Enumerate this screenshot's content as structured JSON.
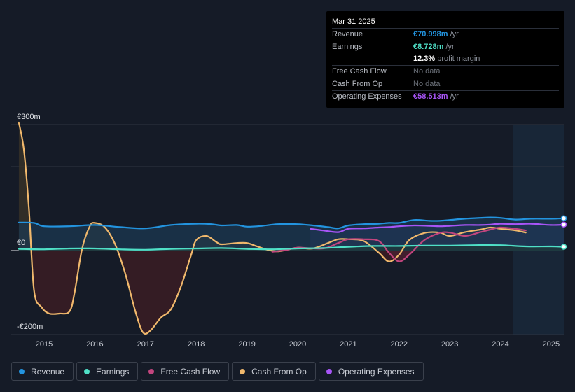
{
  "tooltip": {
    "date": "Mar 31 2025",
    "rows": [
      {
        "label": "Revenue",
        "value": "€70.998m",
        "unit": " /yr",
        "color": "#2394df"
      },
      {
        "label": "Earnings",
        "value": "€8.728m",
        "unit": " /yr",
        "color": "#4fe0c7"
      },
      {
        "label": "",
        "value": "12.3%",
        "unit": " profit margin",
        "color": "#ffffff"
      },
      {
        "label": "Free Cash Flow",
        "value": "No data",
        "unit": "",
        "color": "#6b7079"
      },
      {
        "label": "Cash From Op",
        "value": "No data",
        "unit": "",
        "color": "#6b7079"
      },
      {
        "label": "Operating Expenses",
        "value": "€58.513m",
        "unit": " /yr",
        "color": "#a855f7"
      }
    ]
  },
  "legend": [
    {
      "label": "Revenue",
      "color": "#2394df"
    },
    {
      "label": "Earnings",
      "color": "#4fe0c7"
    },
    {
      "label": "Free Cash Flow",
      "color": "#c2457e"
    },
    {
      "label": "Cash From Op",
      "color": "#f0b86c"
    },
    {
      "label": "Operating Expenses",
      "color": "#a855f7"
    }
  ],
  "chart_data": {
    "type": "line",
    "title": "",
    "xlabel": "",
    "ylabel": "",
    "y_tick_labels": [
      "€300m",
      "€0",
      "-€200m"
    ],
    "y_ticks": [
      300,
      0,
      -200
    ],
    "ylim": [
      -220,
      320
    ],
    "xlim": [
      2014.35,
      2025.25
    ],
    "x_tick_labels": [
      "2015",
      "2016",
      "2017",
      "2018",
      "2019",
      "2020",
      "2021",
      "2022",
      "2023",
      "2024",
      "2025"
    ],
    "x_ticks": [
      2015,
      2016,
      2017,
      2018,
      2019,
      2020,
      2021,
      2022,
      2023,
      2024,
      2025
    ],
    "forecast_shade_start": 2024.25,
    "grid": true,
    "series": [
      {
        "name": "Revenue",
        "color": "#2394df",
        "x": [
          2014.5,
          2014.8,
          2015.0,
          2015.5,
          2016.0,
          2016.5,
          2017.0,
          2017.5,
          2018.0,
          2018.3,
          2018.5,
          2018.8,
          2019.0,
          2019.3,
          2019.6,
          2020.0,
          2020.3,
          2020.6,
          2020.8,
          2021.0,
          2021.3,
          2021.6,
          2021.8,
          2022.0,
          2022.3,
          2022.6,
          2022.8,
          2023.0,
          2023.3,
          2023.6,
          2023.8,
          2024.0,
          2024.3,
          2024.6,
          2025.0,
          2025.25
        ],
        "y": [
          67,
          66,
          58,
          58,
          61,
          56,
          53,
          61,
          64,
          63,
          60,
          61,
          57,
          59,
          63,
          63,
          60,
          56,
          53,
          60,
          63,
          64,
          66,
          66,
          73,
          71,
          71,
          73,
          76,
          78,
          79,
          78,
          74,
          76,
          76,
          77
        ]
      },
      {
        "name": "Earnings",
        "color": "#4fe0c7",
        "x": [
          2014.5,
          2015.0,
          2015.5,
          2016.0,
          2016.5,
          2017.0,
          2017.5,
          2018.0,
          2018.5,
          2019.0,
          2019.5,
          2020.0,
          2020.5,
          2021.0,
          2021.5,
          2022.0,
          2022.5,
          2023.0,
          2023.5,
          2024.0,
          2024.5,
          2025.0,
          2025.25
        ],
        "y": [
          4,
          3,
          5,
          5,
          3,
          2,
          4,
          5,
          6,
          4,
          3,
          5,
          6,
          9,
          11,
          11,
          12,
          12,
          13,
          13,
          10,
          10,
          9
        ]
      },
      {
        "name": "Free Cash Flow",
        "color": "#c2457e",
        "x": [
          2019.5,
          2019.8,
          2020.0,
          2020.5,
          2020.8,
          2021.0,
          2021.3,
          2021.6,
          2021.8,
          2022.0,
          2022.2,
          2022.5,
          2022.8,
          2023.0,
          2023.3,
          2023.6,
          2023.8,
          2024.0,
          2024.3,
          2024.5
        ],
        "y": [
          -3,
          2,
          7,
          5,
          18,
          27,
          27,
          23,
          -5,
          -26,
          -10,
          25,
          42,
          43,
          35,
          44,
          50,
          55,
          52,
          48
        ]
      },
      {
        "name": "Cash From Op",
        "color": "#f0b86c",
        "x": [
          2014.5,
          2014.6,
          2014.7,
          2014.8,
          2014.95,
          2015.1,
          2015.3,
          2015.5,
          2015.6,
          2015.75,
          2015.9,
          2016.0,
          2016.2,
          2016.4,
          2016.6,
          2016.8,
          2016.95,
          2017.1,
          2017.3,
          2017.5,
          2017.7,
          2017.9,
          2018.0,
          2018.2,
          2018.4,
          2018.5,
          2018.8,
          2019.0,
          2019.2,
          2019.4,
          2019.6,
          2019.8,
          2020.0,
          2020.3,
          2020.6,
          2020.8,
          2021.0,
          2021.3,
          2021.6,
          2021.8,
          2022.0,
          2022.2,
          2022.5,
          2022.8,
          2023.0,
          2023.3,
          2023.6,
          2023.8,
          2024.0,
          2024.3,
          2024.5
        ],
        "y": [
          305,
          240,
          100,
          -95,
          -135,
          -150,
          -150,
          -145,
          -100,
          5,
          58,
          66,
          55,
          15,
          -55,
          -145,
          -195,
          -190,
          -160,
          -140,
          -85,
          -10,
          25,
          35,
          20,
          15,
          18,
          18,
          10,
          2,
          -2,
          2,
          7,
          5,
          18,
          27,
          27,
          23,
          -5,
          -26,
          -10,
          25,
          42,
          43,
          35,
          44,
          50,
          55,
          52,
          48,
          43
        ]
      },
      {
        "name": "Operating Expenses",
        "color": "#a855f7",
        "x": [
          2020.25,
          2020.5,
          2020.8,
          2021.0,
          2021.3,
          2021.6,
          2021.8,
          2022.0,
          2022.3,
          2022.6,
          2022.8,
          2023.0,
          2023.3,
          2023.6,
          2023.8,
          2024.0,
          2024.3,
          2024.6,
          2025.0,
          2025.25
        ],
        "y": [
          52,
          48,
          44,
          52,
          53,
          55,
          56,
          58,
          60,
          59,
          58,
          59,
          61,
          61,
          62,
          64,
          63,
          64,
          61,
          62
        ]
      }
    ]
  }
}
